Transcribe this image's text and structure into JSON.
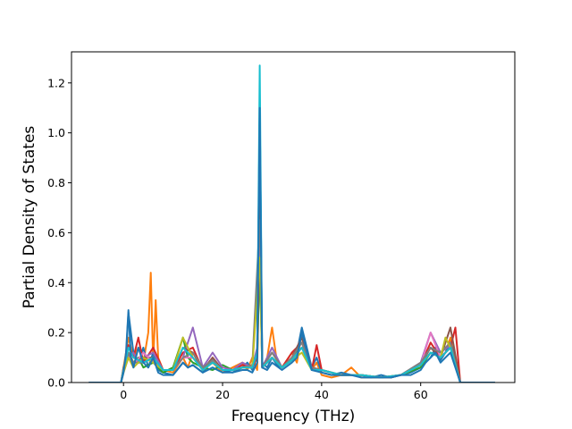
{
  "chart_data": {
    "type": "line",
    "title": "",
    "xlabel": "Frequency (THz)",
    "ylabel": "Partial Density of States",
    "xlim": [
      -10.5,
      79
    ],
    "ylim": [
      0,
      1.3245
    ],
    "xticks": [
      0,
      20,
      40,
      60
    ],
    "yticks": [
      0.0,
      0.2,
      0.4,
      0.6,
      0.8,
      1.0,
      1.2
    ],
    "ytick_labels": [
      "0.0",
      "0.2",
      "0.4",
      "0.6",
      "0.8",
      "1.0",
      "1.2"
    ],
    "grid": false,
    "legend": "none",
    "series": [
      {
        "color": "#ff7f0e",
        "x": [
          -7,
          -0.5,
          0,
          0.5,
          1,
          2,
          3,
          4,
          5,
          5.5,
          6,
          6.5,
          7,
          8,
          10,
          12,
          13,
          14,
          16,
          18,
          20,
          22,
          24,
          25,
          26,
          27,
          27.5,
          28,
          29,
          30,
          31,
          32,
          34,
          35,
          36,
          38,
          39,
          40,
          42,
          44,
          46,
          48,
          50,
          52,
          54,
          56,
          58,
          60,
          62,
          63,
          64,
          65,
          66,
          67,
          68,
          70,
          75
        ],
        "y": [
          0,
          0,
          0.06,
          0.12,
          0.18,
          0.1,
          0.14,
          0.08,
          0.2,
          0.44,
          0.08,
          0.33,
          0.1,
          0.05,
          0.04,
          0.1,
          0.06,
          0.12,
          0.05,
          0.08,
          0.04,
          0.06,
          0.08,
          0.05,
          0.1,
          0.05,
          0.6,
          0.06,
          0.1,
          0.22,
          0.08,
          0.06,
          0.12,
          0.08,
          0.2,
          0.05,
          0.08,
          0.03,
          0.02,
          0.03,
          0.06,
          0.02,
          0.02,
          0.02,
          0.02,
          0.03,
          0.05,
          0.08,
          0.14,
          0.12,
          0.1,
          0.12,
          0.18,
          0.08,
          0,
          0,
          0
        ]
      },
      {
        "color": "#1f77b4",
        "x": [
          -7,
          -0.5,
          0,
          0.5,
          1,
          2,
          3,
          4,
          5,
          6,
          7,
          8,
          10,
          12,
          13,
          14,
          16,
          18,
          20,
          22,
          24,
          25,
          26,
          27,
          27.5,
          28,
          29,
          30,
          31,
          32,
          34,
          35,
          36,
          38,
          39,
          40,
          42,
          44,
          46,
          48,
          50,
          52,
          54,
          56,
          58,
          60,
          62,
          63,
          64,
          65,
          66,
          67,
          68,
          70,
          75
        ],
        "y": [
          0,
          0,
          0.05,
          0.1,
          0.28,
          0.12,
          0.08,
          0.14,
          0.06,
          0.12,
          0.05,
          0.04,
          0.03,
          0.08,
          0.06,
          0.07,
          0.04,
          0.09,
          0.05,
          0.04,
          0.06,
          0.08,
          0.05,
          0.12,
          1.1,
          0.08,
          0.06,
          0.1,
          0.07,
          0.06,
          0.09,
          0.12,
          0.22,
          0.06,
          0.1,
          0.04,
          0.03,
          0.04,
          0.03,
          0.03,
          0.02,
          0.03,
          0.02,
          0.03,
          0.04,
          0.06,
          0.1,
          0.14,
          0.09,
          0.12,
          0.16,
          0.1,
          0,
          0,
          0
        ]
      },
      {
        "color": "#2ca02c",
        "x": [
          -0.5,
          0,
          1,
          2,
          3,
          4,
          6,
          8,
          10,
          12,
          13,
          14,
          16,
          18,
          20,
          22,
          24,
          26,
          27,
          27.5,
          28,
          30,
          32,
          34,
          36,
          38,
          40,
          44,
          48,
          52,
          56,
          60,
          62,
          64,
          66,
          68
        ],
        "y": [
          0,
          0.04,
          0.12,
          0.08,
          0.1,
          0.06,
          0.08,
          0.04,
          0.06,
          0.18,
          0.1,
          0.08,
          0.06,
          0.05,
          0.07,
          0.05,
          0.06,
          0.07,
          0.1,
          0.48,
          0.06,
          0.1,
          0.06,
          0.1,
          0.14,
          0.05,
          0.05,
          0.03,
          0.03,
          0.02,
          0.03,
          0.06,
          0.12,
          0.1,
          0.14,
          0
        ]
      },
      {
        "color": "#d62728",
        "x": [
          -0.5,
          0,
          1,
          2,
          3,
          4,
          6,
          8,
          10,
          12,
          14,
          16,
          18,
          20,
          22,
          24,
          26,
          27,
          27.5,
          28,
          30,
          32,
          34,
          36,
          38,
          39,
          40,
          44,
          48,
          52,
          56,
          60,
          62,
          64,
          66,
          67,
          68
        ],
        "y": [
          0,
          0.05,
          0.15,
          0.1,
          0.18,
          0.08,
          0.14,
          0.05,
          0.05,
          0.12,
          0.14,
          0.05,
          0.1,
          0.05,
          0.05,
          0.07,
          0.06,
          0.1,
          0.7,
          0.06,
          0.1,
          0.06,
          0.12,
          0.16,
          0.05,
          0.15,
          0.05,
          0.03,
          0.03,
          0.02,
          0.03,
          0.07,
          0.16,
          0.1,
          0.14,
          0.22,
          0
        ]
      },
      {
        "color": "#9467bd",
        "x": [
          -0.5,
          0,
          1,
          2,
          3,
          4,
          6,
          8,
          10,
          12,
          13,
          14,
          16,
          18,
          20,
          22,
          24,
          26,
          27,
          27.5,
          28,
          30,
          32,
          34,
          36,
          38,
          40,
          44,
          48,
          52,
          56,
          60,
          62,
          64,
          66,
          68
        ],
        "y": [
          0,
          0.05,
          0.1,
          0.12,
          0.08,
          0.1,
          0.12,
          0.05,
          0.05,
          0.1,
          0.16,
          0.22,
          0.06,
          0.12,
          0.06,
          0.05,
          0.08,
          0.06,
          0.14,
          0.95,
          0.06,
          0.14,
          0.06,
          0.1,
          0.18,
          0.06,
          0.05,
          0.03,
          0.03,
          0.02,
          0.03,
          0.08,
          0.2,
          0.12,
          0.15,
          0
        ]
      },
      {
        "color": "#8c564b",
        "x": [
          -0.5,
          0,
          1,
          2,
          4,
          6,
          8,
          10,
          12,
          14,
          16,
          18,
          20,
          22,
          24,
          26,
          27,
          27.5,
          28,
          30,
          32,
          34,
          36,
          38,
          40,
          44,
          48,
          52,
          56,
          60,
          62,
          64,
          66,
          68
        ],
        "y": [
          0,
          0.06,
          0.12,
          0.08,
          0.1,
          0.1,
          0.05,
          0.05,
          0.14,
          0.12,
          0.05,
          0.1,
          0.05,
          0.05,
          0.06,
          0.06,
          0.12,
          0.8,
          0.06,
          0.12,
          0.06,
          0.1,
          0.18,
          0.06,
          0.05,
          0.03,
          0.03,
          0.02,
          0.03,
          0.07,
          0.14,
          0.1,
          0.22,
          0
        ]
      },
      {
        "color": "#e377c2",
        "x": [
          -0.5,
          0,
          1,
          2,
          4,
          6,
          8,
          10,
          12,
          14,
          16,
          18,
          20,
          22,
          24,
          26,
          27.5,
          28,
          30,
          32,
          34,
          36,
          38,
          40,
          44,
          48,
          52,
          56,
          60,
          62,
          64,
          66,
          68
        ],
        "y": [
          0,
          0.04,
          0.1,
          0.07,
          0.12,
          0.08,
          0.05,
          0.05,
          0.1,
          0.1,
          0.05,
          0.08,
          0.05,
          0.05,
          0.06,
          0.06,
          0.55,
          0.06,
          0.1,
          0.06,
          0.09,
          0.14,
          0.05,
          0.05,
          0.03,
          0.03,
          0.02,
          0.03,
          0.07,
          0.2,
          0.1,
          0.14,
          0
        ]
      },
      {
        "color": "#7f7f7f",
        "x": [
          -0.5,
          0,
          1,
          2,
          4,
          6,
          8,
          10,
          12,
          14,
          16,
          18,
          20,
          22,
          24,
          26,
          27.5,
          28,
          30,
          32,
          34,
          36,
          38,
          40,
          44,
          48,
          52,
          56,
          60,
          62,
          64,
          66,
          68
        ],
        "y": [
          0,
          0.05,
          0.12,
          0.08,
          0.08,
          0.1,
          0.05,
          0.05,
          0.1,
          0.12,
          0.06,
          0.09,
          0.05,
          0.05,
          0.06,
          0.07,
          0.65,
          0.06,
          0.12,
          0.06,
          0.1,
          0.16,
          0.06,
          0.05,
          0.03,
          0.03,
          0.02,
          0.03,
          0.08,
          0.14,
          0.12,
          0.16,
          0
        ]
      },
      {
        "color": "#bcbd22",
        "x": [
          -0.5,
          0,
          1,
          2,
          4,
          6,
          8,
          10,
          12,
          14,
          16,
          18,
          20,
          22,
          24,
          26,
          27.5,
          28,
          30,
          32,
          34,
          36,
          38,
          40,
          44,
          48,
          52,
          56,
          60,
          62,
          64,
          65,
          66,
          68
        ],
        "y": [
          0,
          0.04,
          0.1,
          0.06,
          0.1,
          0.08,
          0.05,
          0.05,
          0.18,
          0.1,
          0.05,
          0.08,
          0.05,
          0.05,
          0.06,
          0.06,
          0.5,
          0.06,
          0.1,
          0.06,
          0.09,
          0.12,
          0.05,
          0.05,
          0.03,
          0.03,
          0.02,
          0.03,
          0.07,
          0.12,
          0.1,
          0.18,
          0.14,
          0
        ]
      },
      {
        "color": "#17becf",
        "x": [
          -0.5,
          0,
          1,
          2,
          4,
          6,
          8,
          10,
          12,
          14,
          16,
          18,
          20,
          22,
          24,
          26,
          27,
          27.5,
          28,
          30,
          32,
          34,
          36,
          38,
          40,
          44,
          48,
          52,
          56,
          60,
          62,
          64,
          66,
          68
        ],
        "y": [
          0,
          0.05,
          0.14,
          0.1,
          0.08,
          0.1,
          0.05,
          0.05,
          0.14,
          0.1,
          0.05,
          0.08,
          0.05,
          0.05,
          0.06,
          0.06,
          0.12,
          1.27,
          0.06,
          0.1,
          0.06,
          0.09,
          0.14,
          0.05,
          0.05,
          0.03,
          0.03,
          0.02,
          0.03,
          0.07,
          0.12,
          0.1,
          0.14,
          0
        ]
      },
      {
        "color": "#1f77b4",
        "x": [
          -7,
          -0.5,
          0,
          0.5,
          1,
          1.5,
          2,
          3,
          4,
          5,
          6,
          7,
          8,
          10,
          12,
          13,
          14,
          16,
          18,
          20,
          22,
          24,
          25,
          26,
          27,
          27.5,
          28,
          29,
          30,
          32,
          34,
          35,
          36,
          38,
          40,
          42,
          44,
          46,
          48,
          50,
          52,
          54,
          56,
          58,
          60,
          61,
          62,
          63,
          64,
          65,
          66,
          67,
          68,
          75
        ],
        "y": [
          0,
          0,
          0.04,
          0.12,
          0.29,
          0.1,
          0.06,
          0.14,
          0.08,
          0.06,
          0.1,
          0.04,
          0.03,
          0.03,
          0.08,
          0.06,
          0.07,
          0.04,
          0.06,
          0.04,
          0.04,
          0.05,
          0.05,
          0.04,
          0.08,
          1.1,
          0.06,
          0.05,
          0.08,
          0.05,
          0.08,
          0.1,
          0.2,
          0.05,
          0.04,
          0.03,
          0.03,
          0.03,
          0.02,
          0.02,
          0.02,
          0.02,
          0.03,
          0.03,
          0.05,
          0.08,
          0.1,
          0.12,
          0.08,
          0.1,
          0.12,
          0.06,
          0,
          0
        ]
      }
    ]
  }
}
